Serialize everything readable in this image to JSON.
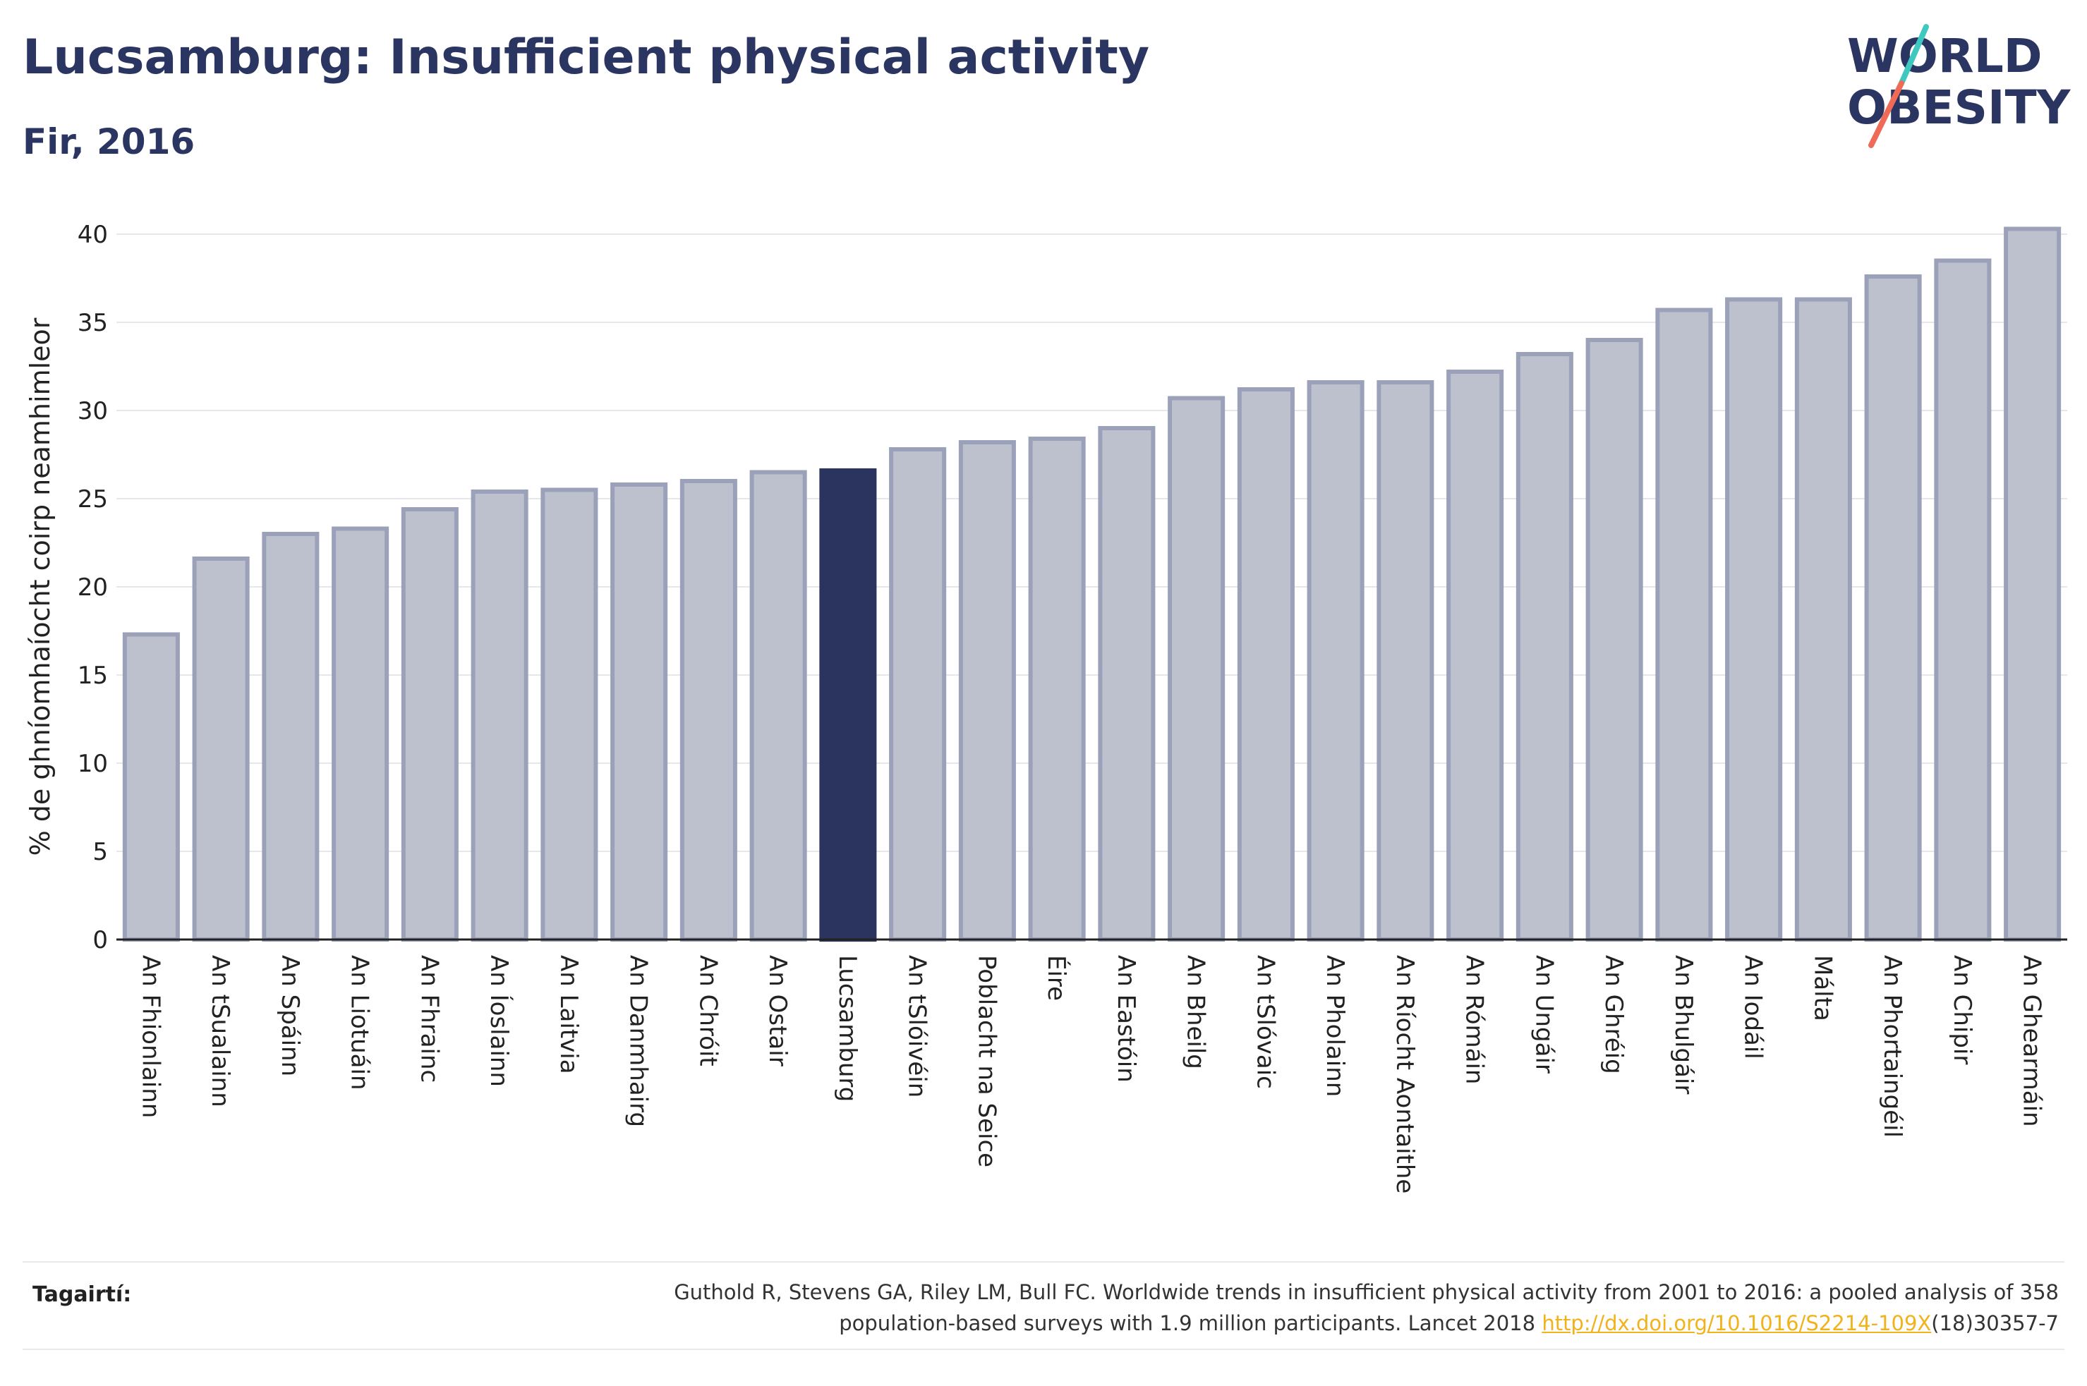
{
  "title": "Lucsamburg: Insufficient physical activity",
  "subtitle": "Fir, 2016",
  "logo": {
    "line1": "WORLD",
    "line2": "OBESITY"
  },
  "colors": {
    "bar_default": "#bdc1ce",
    "bar_border": "#9ba1b9",
    "bar_highlight": "#2a345e",
    "axis": "#222222",
    "grid": "#e6e6ec",
    "logo_text": "#2b3562",
    "logo_slash_top": "#3ec8c0",
    "logo_slash_bottom": "#ef6b57",
    "link": "#f2b21b"
  },
  "chart_data": {
    "type": "bar",
    "ylabel": "% de ghníomhaíocht coirp neamhimleor",
    "xlabel": "",
    "ylim": [
      0,
      40
    ],
    "yticks": [
      0,
      5,
      10,
      15,
      20,
      25,
      30,
      35,
      40
    ],
    "grid": true,
    "highlight": "Lucsamburg",
    "categories": [
      "An Fhionlainn",
      "An tSualainn",
      "An Spáinn",
      "An Liotuáin",
      "An Fhrainc",
      "An Íoslainn",
      "An Laitvia",
      "An Danmhairg",
      "An Chróit",
      "An Ostair",
      "Lucsamburg",
      "An tSlóivéin",
      "Poblacht na Seice",
      "Éire",
      "An Eastóin",
      "An Bheilg",
      "An tSlóvaic",
      "An Pholainn",
      "An Ríocht Aontaithe",
      "An Rómáin",
      "An Ungáir",
      "An Ghréig",
      "An Bhulgáir",
      "An Iodáil",
      "Málta",
      "An Phortaingéil",
      "An Chipir",
      "An Ghearmáin"
    ],
    "values": [
      17.3,
      21.6,
      23.0,
      23.3,
      24.4,
      25.4,
      25.5,
      25.8,
      26.0,
      26.5,
      26.6,
      27.8,
      28.2,
      28.4,
      29.0,
      30.7,
      31.2,
      31.6,
      31.6,
      32.2,
      33.2,
      34.0,
      35.7,
      36.3,
      36.3,
      37.6,
      38.5,
      40.3
    ]
  },
  "references": {
    "label": "Tagairtí:",
    "text_line1": "Guthold R, Stevens GA, Riley LM, Bull FC. Worldwide trends in insufficient physical activity from 2001 to 2016: a pooled analysis of 358",
    "text_line2_pre": "population-based surveys with 1.9 million participants. Lancet 2018 ",
    "link": "http://dx.doi.org/10.1016/S2214-109X",
    "text_line2_post": "(18)30357-7"
  }
}
